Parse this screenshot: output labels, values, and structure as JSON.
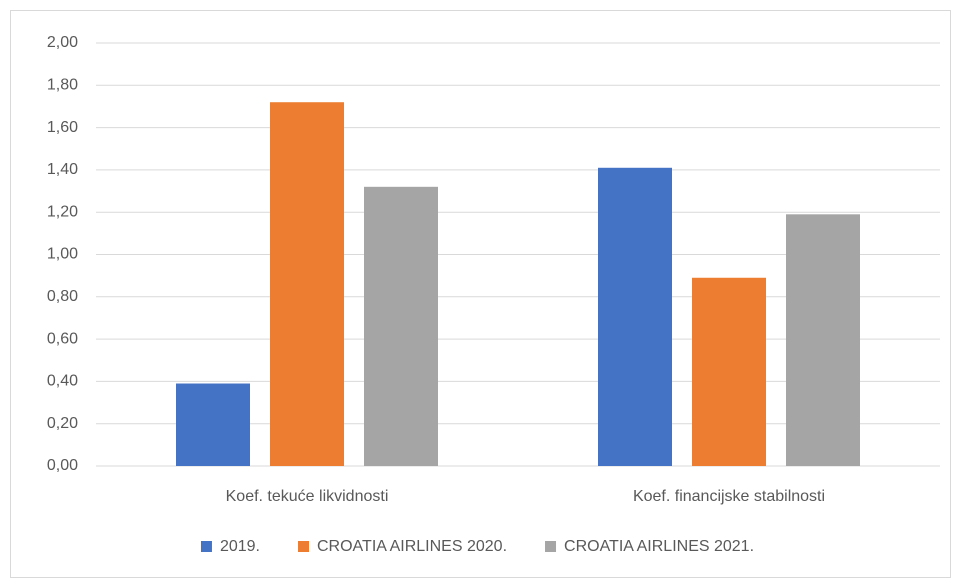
{
  "chart_data": {
    "type": "bar",
    "categories": [
      "Koef. tekuće likvidnosti",
      "Koef. financijske stabilnosti"
    ],
    "series": [
      {
        "name": "2019.",
        "color": "#4472c4",
        "values": [
          0.39,
          1.41
        ]
      },
      {
        "name": "CROATIA AIRLINES 2020.",
        "color": "#ed7d31",
        "values": [
          1.72,
          0.89
        ]
      },
      {
        "name": "CROATIA AIRLINES 2021.",
        "color": "#a5a5a5",
        "values": [
          1.32,
          1.19
        ]
      }
    ],
    "ylim": [
      0,
      2
    ],
    "yticks": [
      {
        "value": 0,
        "label": "0,00"
      },
      {
        "value": 0.2,
        "label": "0,20"
      },
      {
        "value": 0.4,
        "label": "0,40"
      },
      {
        "value": 0.6,
        "label": "0,60"
      },
      {
        "value": 0.8,
        "label": "0,80"
      },
      {
        "value": 1,
        "label": "1,00"
      },
      {
        "value": 1.2,
        "label": "1,20"
      },
      {
        "value": 1.4,
        "label": "1,40"
      },
      {
        "value": 1.6,
        "label": "1,60"
      },
      {
        "value": 1.8,
        "label": "1,80"
      },
      {
        "value": 2,
        "label": "2,00"
      }
    ],
    "grid": true,
    "legend": "bottom"
  }
}
